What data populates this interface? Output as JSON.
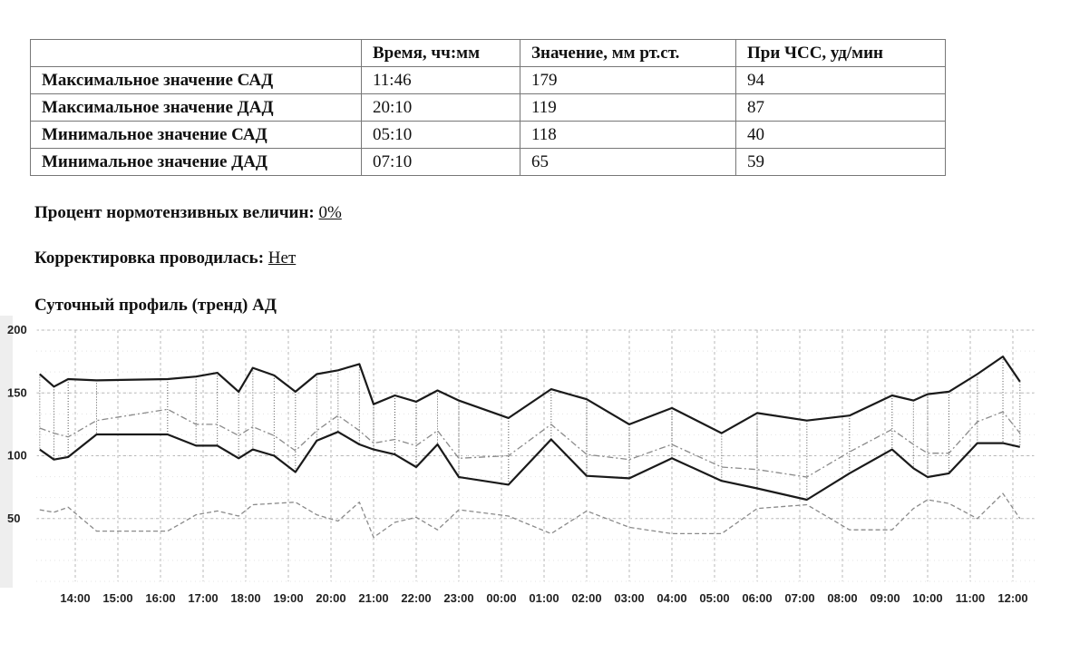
{
  "table": {
    "headers": [
      "",
      "Время, чч:мм",
      "Значение, мм рт.ст.",
      "При ЧСС, уд/мин"
    ],
    "rows": [
      {
        "label": "Максимальное значение САД",
        "time": "11:46",
        "value": "179",
        "hr": "94"
      },
      {
        "label": "Максимальное значение ДАД",
        "time": "20:10",
        "value": "119",
        "hr": "87"
      },
      {
        "label": "Минимальное значение САД",
        "time": "05:10",
        "value": "118",
        "hr": "40"
      },
      {
        "label": "Минимальное значение ДАД",
        "time": "07:10",
        "value": "65",
        "hr": "59"
      }
    ]
  },
  "normotensive": {
    "label": "Процент нормотензивных величин:",
    "value": "0%"
  },
  "correction": {
    "label": "Корректировка проводилась:",
    "value": "Нет"
  },
  "chart_title": "Суточный профиль (тренд) АД",
  "chart_data": {
    "type": "line",
    "title": "Суточный профиль (тренд) АД",
    "xlabel": "",
    "ylabel": "",
    "ylim": [
      0,
      200
    ],
    "yticks": [
      200,
      150,
      100,
      50
    ],
    "x_ticks": [
      "14:00",
      "15:00",
      "16:00",
      "17:00",
      "18:00",
      "19:00",
      "20:00",
      "21:00",
      "22:00",
      "23:00",
      "00:00",
      "01:00",
      "02:00",
      "03:00",
      "04:00",
      "05:00",
      "06:00",
      "07:00",
      "08:00",
      "09:00",
      "10:00",
      "11:00",
      "12:00"
    ],
    "grid": true,
    "x": [
      "13:10",
      "13:30",
      "13:50",
      "14:30",
      "16:10",
      "16:50",
      "17:20",
      "17:50",
      "18:10",
      "18:40",
      "19:10",
      "19:40",
      "20:10",
      "20:40",
      "21:00",
      "21:30",
      "22:00",
      "22:30",
      "23:00",
      "00:10",
      "01:10",
      "02:00",
      "03:00",
      "04:00",
      "05:10",
      "06:00",
      "07:10",
      "08:10",
      "09:10",
      "09:40",
      "10:00",
      "10:30",
      "11:10",
      "11:46",
      "12:10"
    ],
    "series": [
      {
        "values": [
          165,
          155,
          161,
          160,
          161,
          163,
          166,
          151,
          170,
          164,
          151,
          165,
          168,
          173,
          141,
          148,
          143,
          152,
          144,
          130,
          153,
          145,
          125,
          138,
          118,
          134,
          128,
          132,
          148,
          144,
          149,
          151,
          165,
          179,
          159
        ]
      },
      {
        "values": [
          105,
          97,
          99,
          117,
          117,
          108,
          108,
          98,
          105,
          100,
          87,
          112,
          119,
          109,
          105,
          101,
          91,
          109,
          83,
          77,
          113,
          84,
          82,
          98,
          80,
          74,
          65,
          86,
          105,
          90,
          83,
          86,
          110,
          110,
          107
        ]
      },
      {
        "values": [
          122,
          118,
          115,
          128,
          137,
          125,
          125,
          116,
          123,
          116,
          104,
          120,
          132,
          120,
          110,
          113,
          108,
          120,
          98,
          100,
          125,
          101,
          97,
          109,
          91,
          89,
          83,
          103,
          121,
          109,
          102,
          102,
          127,
          135,
          118
        ]
      },
      {
        "values": [
          57,
          55,
          59,
          40,
          40,
          53,
          56,
          52,
          61,
          62,
          63,
          53,
          48,
          63,
          35,
          47,
          51,
          41,
          57,
          52,
          38,
          56,
          43,
          38,
          38,
          58,
          61,
          41,
          41,
          58,
          65,
          62,
          50,
          70,
          50
        ]
      }
    ]
  }
}
